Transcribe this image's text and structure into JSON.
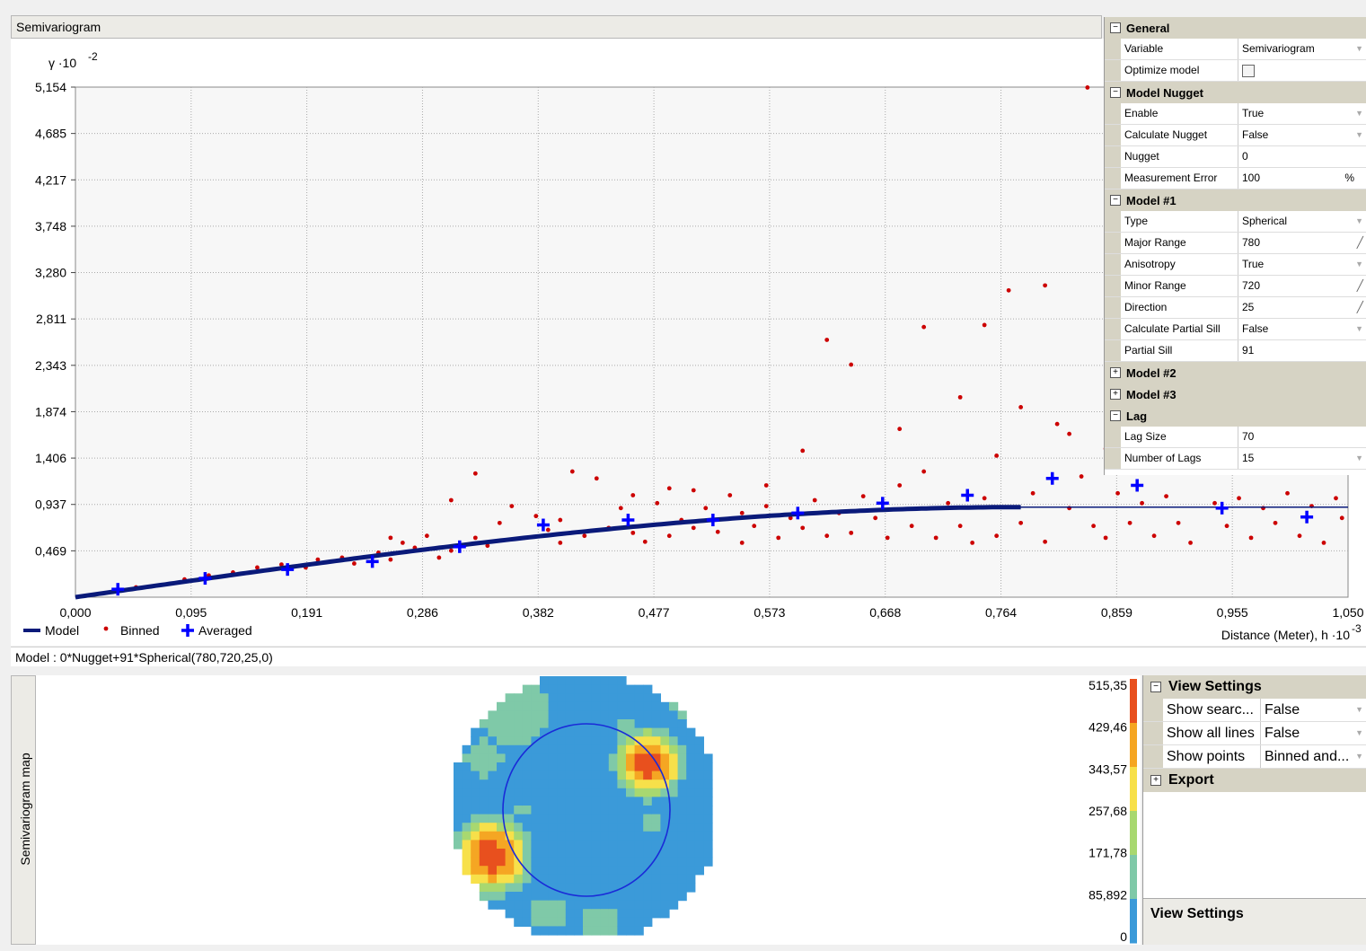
{
  "top_panel": {
    "title": "Semivariogram",
    "model_text": "Model : 0*Nugget+91*Spherical(780,720,25,0)"
  },
  "chart_data": {
    "type": "scatter",
    "ylabel": "γ ·10",
    "ylabel_exp": "-2",
    "xlabel": "Distance (Meter), h ·10",
    "xlabel_exp": "-3",
    "xlim": [
      0,
      1.05
    ],
    "ylim": [
      0,
      5.154
    ],
    "x_ticks": [
      "0,000",
      "0,095",
      "0,191",
      "0,286",
      "0,382",
      "0,477",
      "0,573",
      "0,668",
      "0,764",
      "0,859",
      "0,955",
      "1,050"
    ],
    "y_ticks": [
      "5,154",
      "4,685",
      "4,217",
      "3,748",
      "3,280",
      "2,811",
      "2,343",
      "1,874",
      "1,406",
      "0,937",
      "0,469"
    ],
    "grid": true,
    "legend": [
      {
        "name": "Model",
        "color": "#0a1a7a",
        "symbol": "line"
      },
      {
        "name": "Binned",
        "color": "#cc0000",
        "symbol": "dot"
      },
      {
        "name": "Averaged",
        "color": "#0000ff",
        "symbol": "plus"
      }
    ],
    "model": {
      "type": "spherical",
      "nugget": 0,
      "partial_sill": 0.91,
      "range": 0.78
    },
    "averaged": [
      [
        0.035,
        0.08
      ],
      [
        0.107,
        0.19
      ],
      [
        0.175,
        0.28
      ],
      [
        0.245,
        0.36
      ],
      [
        0.317,
        0.51
      ],
      [
        0.386,
        0.73
      ],
      [
        0.456,
        0.78
      ],
      [
        0.526,
        0.78
      ],
      [
        0.596,
        0.85
      ],
      [
        0.666,
        0.95
      ],
      [
        0.736,
        1.03
      ],
      [
        0.806,
        1.2
      ],
      [
        0.876,
        1.13
      ],
      [
        0.946,
        0.9
      ],
      [
        1.016,
        0.81
      ]
    ],
    "binned": [
      [
        0.05,
        0.1
      ],
      [
        0.09,
        0.18
      ],
      [
        0.11,
        0.22
      ],
      [
        0.13,
        0.25
      ],
      [
        0.15,
        0.3
      ],
      [
        0.17,
        0.33
      ],
      [
        0.19,
        0.3
      ],
      [
        0.2,
        0.38
      ],
      [
        0.22,
        0.4
      ],
      [
        0.23,
        0.34
      ],
      [
        0.25,
        0.45
      ],
      [
        0.26,
        0.6
      ],
      [
        0.26,
        0.38
      ],
      [
        0.27,
        0.55
      ],
      [
        0.28,
        0.5
      ],
      [
        0.29,
        0.62
      ],
      [
        0.3,
        0.4
      ],
      [
        0.31,
        0.47
      ],
      [
        0.31,
        0.98
      ],
      [
        0.33,
        1.25
      ],
      [
        0.33,
        0.6
      ],
      [
        0.34,
        0.52
      ],
      [
        0.35,
        0.75
      ],
      [
        0.36,
        0.92
      ],
      [
        0.37,
        0.6
      ],
      [
        0.38,
        0.82
      ],
      [
        0.39,
        0.68
      ],
      [
        0.4,
        0.78
      ],
      [
        0.4,
        0.55
      ],
      [
        0.41,
        1.27
      ],
      [
        0.42,
        0.62
      ],
      [
        0.43,
        1.2
      ],
      [
        0.44,
        0.7
      ],
      [
        0.45,
        0.9
      ],
      [
        0.46,
        0.65
      ],
      [
        0.46,
        1.03
      ],
      [
        0.47,
        0.56
      ],
      [
        0.48,
        0.95
      ],
      [
        0.49,
        1.1
      ],
      [
        0.49,
        0.62
      ],
      [
        0.5,
        0.78
      ],
      [
        0.51,
        1.08
      ],
      [
        0.51,
        0.7
      ],
      [
        0.52,
        0.9
      ],
      [
        0.53,
        0.66
      ],
      [
        0.54,
        1.03
      ],
      [
        0.55,
        0.85
      ],
      [
        0.55,
        0.55
      ],
      [
        0.56,
        0.72
      ],
      [
        0.57,
        1.13
      ],
      [
        0.57,
        0.92
      ],
      [
        0.58,
        0.6
      ],
      [
        0.59,
        0.8
      ],
      [
        0.6,
        1.48
      ],
      [
        0.6,
        0.7
      ],
      [
        0.61,
        0.98
      ],
      [
        0.62,
        2.6
      ],
      [
        0.62,
        0.62
      ],
      [
        0.63,
        0.85
      ],
      [
        0.64,
        2.35
      ],
      [
        0.64,
        0.65
      ],
      [
        0.65,
        1.02
      ],
      [
        0.66,
        0.8
      ],
      [
        0.67,
        0.6
      ],
      [
        0.68,
        1.7
      ],
      [
        0.68,
        1.13
      ],
      [
        0.69,
        0.72
      ],
      [
        0.7,
        2.73
      ],
      [
        0.7,
        1.27
      ],
      [
        0.71,
        0.6
      ],
      [
        0.72,
        0.95
      ],
      [
        0.73,
        2.02
      ],
      [
        0.73,
        0.72
      ],
      [
        0.74,
        0.55
      ],
      [
        0.75,
        2.75
      ],
      [
        0.75,
        1.0
      ],
      [
        0.76,
        1.43
      ],
      [
        0.76,
        0.62
      ],
      [
        0.77,
        3.1
      ],
      [
        0.78,
        1.92
      ],
      [
        0.78,
        0.75
      ],
      [
        0.79,
        1.05
      ],
      [
        0.8,
        3.15
      ],
      [
        0.8,
        0.56
      ],
      [
        0.81,
        1.75
      ],
      [
        0.82,
        1.65
      ],
      [
        0.82,
        0.9
      ],
      [
        0.83,
        1.22
      ],
      [
        0.84,
        0.72
      ],
      [
        0.85,
        1.5
      ],
      [
        0.85,
        0.6
      ],
      [
        0.86,
        1.05
      ],
      [
        0.87,
        0.75
      ],
      [
        0.88,
        0.95
      ],
      [
        0.89,
        0.62
      ],
      [
        0.9,
        1.02
      ],
      [
        0.91,
        0.75
      ],
      [
        0.92,
        0.55
      ],
      [
        0.93,
        1.3
      ],
      [
        0.94,
        0.95
      ],
      [
        0.95,
        0.72
      ],
      [
        0.96,
        1.0
      ],
      [
        0.97,
        0.6
      ],
      [
        0.98,
        0.9
      ],
      [
        0.99,
        0.75
      ],
      [
        1.0,
        1.05
      ],
      [
        1.01,
        0.62
      ],
      [
        1.02,
        0.92
      ],
      [
        1.03,
        0.55
      ],
      [
        1.04,
        1.0
      ],
      [
        1.045,
        0.8
      ],
      [
        0.835,
        5.15
      ]
    ]
  },
  "props": {
    "general": {
      "title": "General",
      "variable_label": "Variable",
      "variable_value": "Semivariogram",
      "optimize_label": "Optimize model"
    },
    "nugget": {
      "title": "Model Nugget",
      "enable_label": "Enable",
      "enable_value": "True",
      "calc_label": "Calculate Nugget",
      "calc_value": "False",
      "nugget_label": "Nugget",
      "nugget_value": "0",
      "meas_label": "Measurement Error",
      "meas_value": "100",
      "meas_unit": "%"
    },
    "model1": {
      "title": "Model #1",
      "type_label": "Type",
      "type_value": "Spherical",
      "major_label": "Major Range",
      "major_value": "780",
      "aniso_label": "Anisotropy",
      "aniso_value": "True",
      "minor_label": "Minor Range",
      "minor_value": "720",
      "dir_label": "Direction",
      "dir_value": "25",
      "calcps_label": "Calculate Partial Sill",
      "calcps_value": "False",
      "ps_label": "Partial Sill",
      "ps_value": "91"
    },
    "model2": {
      "title": "Model #2"
    },
    "model3": {
      "title": "Model #3"
    },
    "lag": {
      "title": "Lag",
      "size_label": "Lag Size",
      "size_value": "70",
      "num_label": "Number of Lags",
      "num_value": "15"
    }
  },
  "map_panel": {
    "side_title": "Semivariogram map",
    "legend_values": [
      "515,35",
      "429,46",
      "343,57",
      "257,68",
      "171,78",
      "85,892",
      "0"
    ],
    "legend_colors": [
      "#e8501e",
      "#f5a623",
      "#f7e04a",
      "#a8d870",
      "#7fc9a8",
      "#3b9ad9"
    ]
  },
  "view_settings": {
    "title": "View Settings",
    "show_search_label": "Show searc...",
    "show_search_value": "False",
    "show_lines_label": "Show all lines",
    "show_lines_value": "False",
    "show_points_label": "Show points",
    "show_points_value": "Binned and...",
    "export_title": "Export",
    "desc_title": "View Settings"
  }
}
